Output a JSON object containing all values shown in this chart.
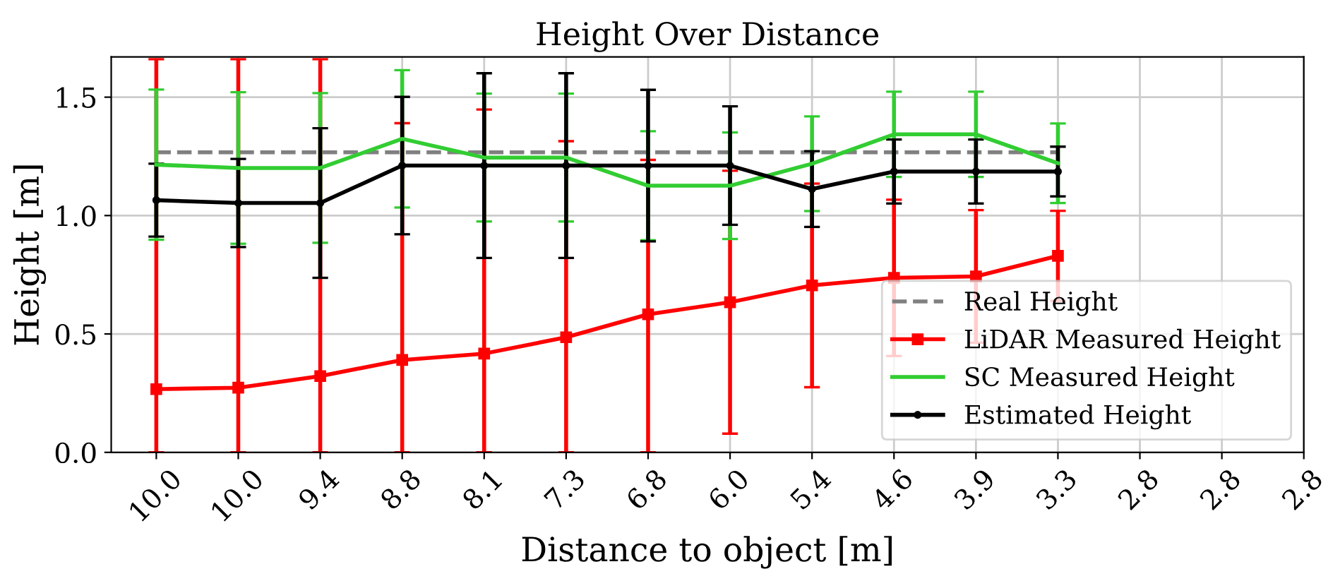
{
  "chart_data": {
    "type": "line",
    "title": "Height Over Distance",
    "xlabel": "Distance to object [m]",
    "ylabel": "Height [m]",
    "categories": [
      "10.0",
      "10.0",
      "9.4",
      "8.8",
      "8.1",
      "7.3",
      "6.8",
      "6.0",
      "5.4",
      "4.6",
      "3.9",
      "3.3",
      "2.8",
      "2.8",
      "2.8"
    ],
    "series": [
      {
        "name": "Real Height",
        "color": "#808080",
        "line_style": "dashed",
        "marker": "none",
        "values": [
          1.267,
          1.267,
          1.267,
          1.267,
          1.267,
          1.267,
          1.267,
          1.267,
          1.267,
          1.267,
          1.267,
          1.267,
          null,
          null,
          null
        ]
      },
      {
        "name": "LiDAR Measured Height",
        "color": "#ff0000",
        "line_style": "solid",
        "marker": "square",
        "values": [
          0.267,
          0.273,
          0.322,
          0.39,
          0.417,
          0.486,
          0.583,
          0.634,
          0.705,
          0.737,
          0.743,
          0.83,
          null,
          null,
          null
        ],
        "errors": [
          [
            0,
            1.66
          ],
          [
            0,
            1.66
          ],
          [
            0,
            1.66
          ],
          [
            0,
            1.39
          ],
          [
            0,
            1.448
          ],
          [
            0,
            1.314
          ],
          [
            0,
            1.235
          ],
          0.555,
          0.43,
          0.33,
          0.28,
          0.19,
          null,
          null,
          null
        ]
      },
      {
        "name": "SC Measured Height",
        "color": "#32cd32",
        "line_style": "solid",
        "marker": "none",
        "values": [
          1.215,
          1.201,
          1.201,
          1.324,
          1.245,
          1.245,
          1.126,
          1.126,
          1.219,
          1.343,
          1.343,
          1.221,
          null,
          null,
          null
        ],
        "errors": [
          0.317,
          0.32,
          0.316,
          0.29,
          0.27,
          0.27,
          0.23,
          0.225,
          0.2,
          0.18,
          0.18,
          0.168,
          null,
          null,
          null
        ]
      },
      {
        "name": "Estimated Height",
        "color": "#000000",
        "line_style": "solid",
        "marker": "circle",
        "values": [
          1.065,
          1.053,
          1.053,
          1.211,
          1.211,
          1.211,
          1.211,
          1.211,
          1.112,
          1.186,
          1.186,
          1.186,
          null,
          null,
          null
        ],
        "errors": [
          0.154,
          0.186,
          0.316,
          0.29,
          0.39,
          0.39,
          0.32,
          0.25,
          0.16,
          0.135,
          0.135,
          0.105,
          null,
          null,
          null
        ]
      }
    ],
    "ylim": [
      0,
      1.67
    ],
    "yticks": [
      {
        "value": 0,
        "label": "0.0"
      },
      {
        "value": 0.5,
        "label": "0.5"
      },
      {
        "value": 1.0,
        "label": "1.0"
      },
      {
        "value": 1.5,
        "label": "1.5"
      }
    ],
    "grid": true,
    "legend": "bottom right"
  }
}
